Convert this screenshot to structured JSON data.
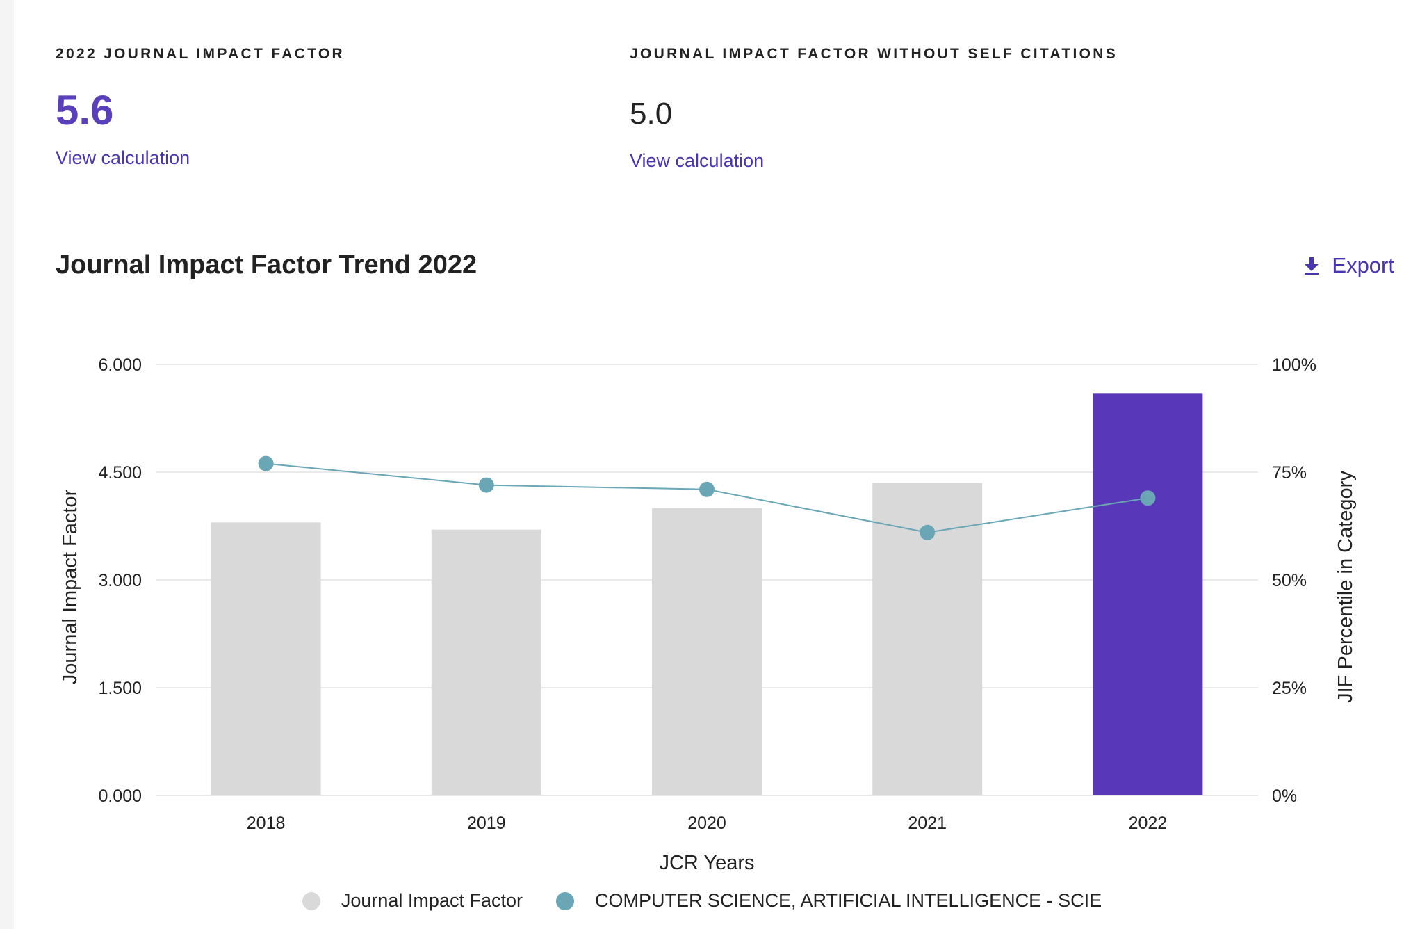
{
  "metrics": {
    "jif": {
      "label": "2022 JOURNAL IMPACT FACTOR",
      "value": "5.6",
      "link": "View calculation"
    },
    "jif_no_self": {
      "label": "JOURNAL IMPACT FACTOR WITHOUT SELF CITATIONS",
      "value": "5.0",
      "link": "View calculation"
    }
  },
  "trend": {
    "title": "Journal Impact Factor Trend 2022",
    "export_label": "Export",
    "export_icon": "download-icon"
  },
  "colors": {
    "bar_default": "#d9d9d9",
    "bar_highlight": "#5838b8",
    "line": "#6aa6b6",
    "accent": "#4a35b0",
    "grid": "#e3e3e3"
  },
  "chart_data": {
    "type": "bar",
    "categories": [
      "2018",
      "2019",
      "2020",
      "2021",
      "2022"
    ],
    "series": [
      {
        "name": "Journal Impact Factor",
        "type": "bar",
        "axis": "left",
        "values": [
          3.8,
          3.7,
          4.0,
          4.35,
          5.6
        ],
        "highlight_index": 4
      },
      {
        "name": "COMPUTER SCIENCE, ARTIFICIAL INTELLIGENCE - SCIE",
        "type": "line",
        "axis": "right",
        "values": [
          77,
          72,
          71,
          61,
          69
        ]
      }
    ],
    "xlabel": "JCR Years",
    "ylabel": "Journal Impact Factor",
    "ylabel_right": "JIF Percentile in Category",
    "ylim": [
      0,
      6
    ],
    "ylim_right": [
      0,
      100
    ],
    "yticks": [
      "0.000",
      "1.500",
      "3.000",
      "4.500",
      "6.000"
    ],
    "yticks_right": [
      "0%",
      "25%",
      "50%",
      "75%",
      "100%"
    ],
    "grid": true,
    "legend_position": "bottom"
  }
}
